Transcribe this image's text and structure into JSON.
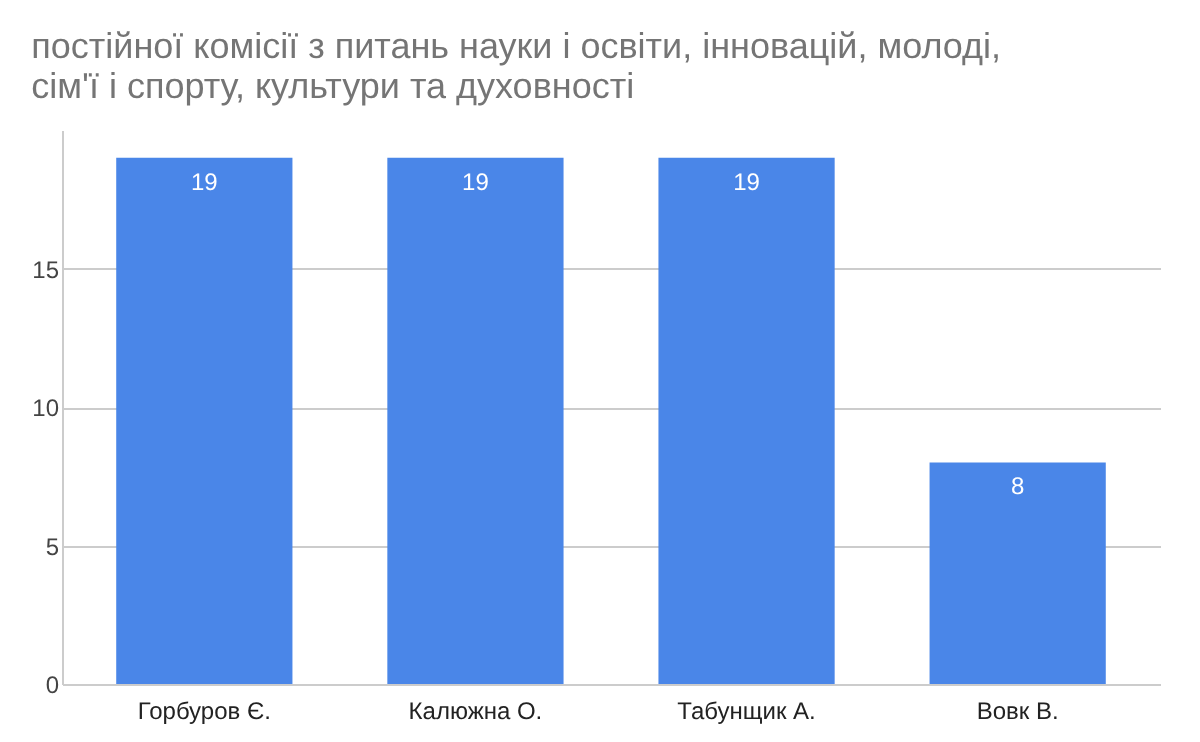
{
  "chart_data": {
    "type": "bar",
    "title": "постійної комісії з питань науки і освіти, інновацій, молоді, сім'ї і спорту, культури та духовності",
    "categories": [
      "Горбуров Є.",
      "Калюжна О.",
      "Табунщик А.",
      "Вовк В."
    ],
    "values": [
      19,
      19,
      19,
      8
    ],
    "color": "#4a86e8",
    "ylim": [
      0,
      20
    ],
    "yticks": [
      0,
      5,
      10,
      15
    ],
    "grid": "y",
    "data_labels": true
  }
}
